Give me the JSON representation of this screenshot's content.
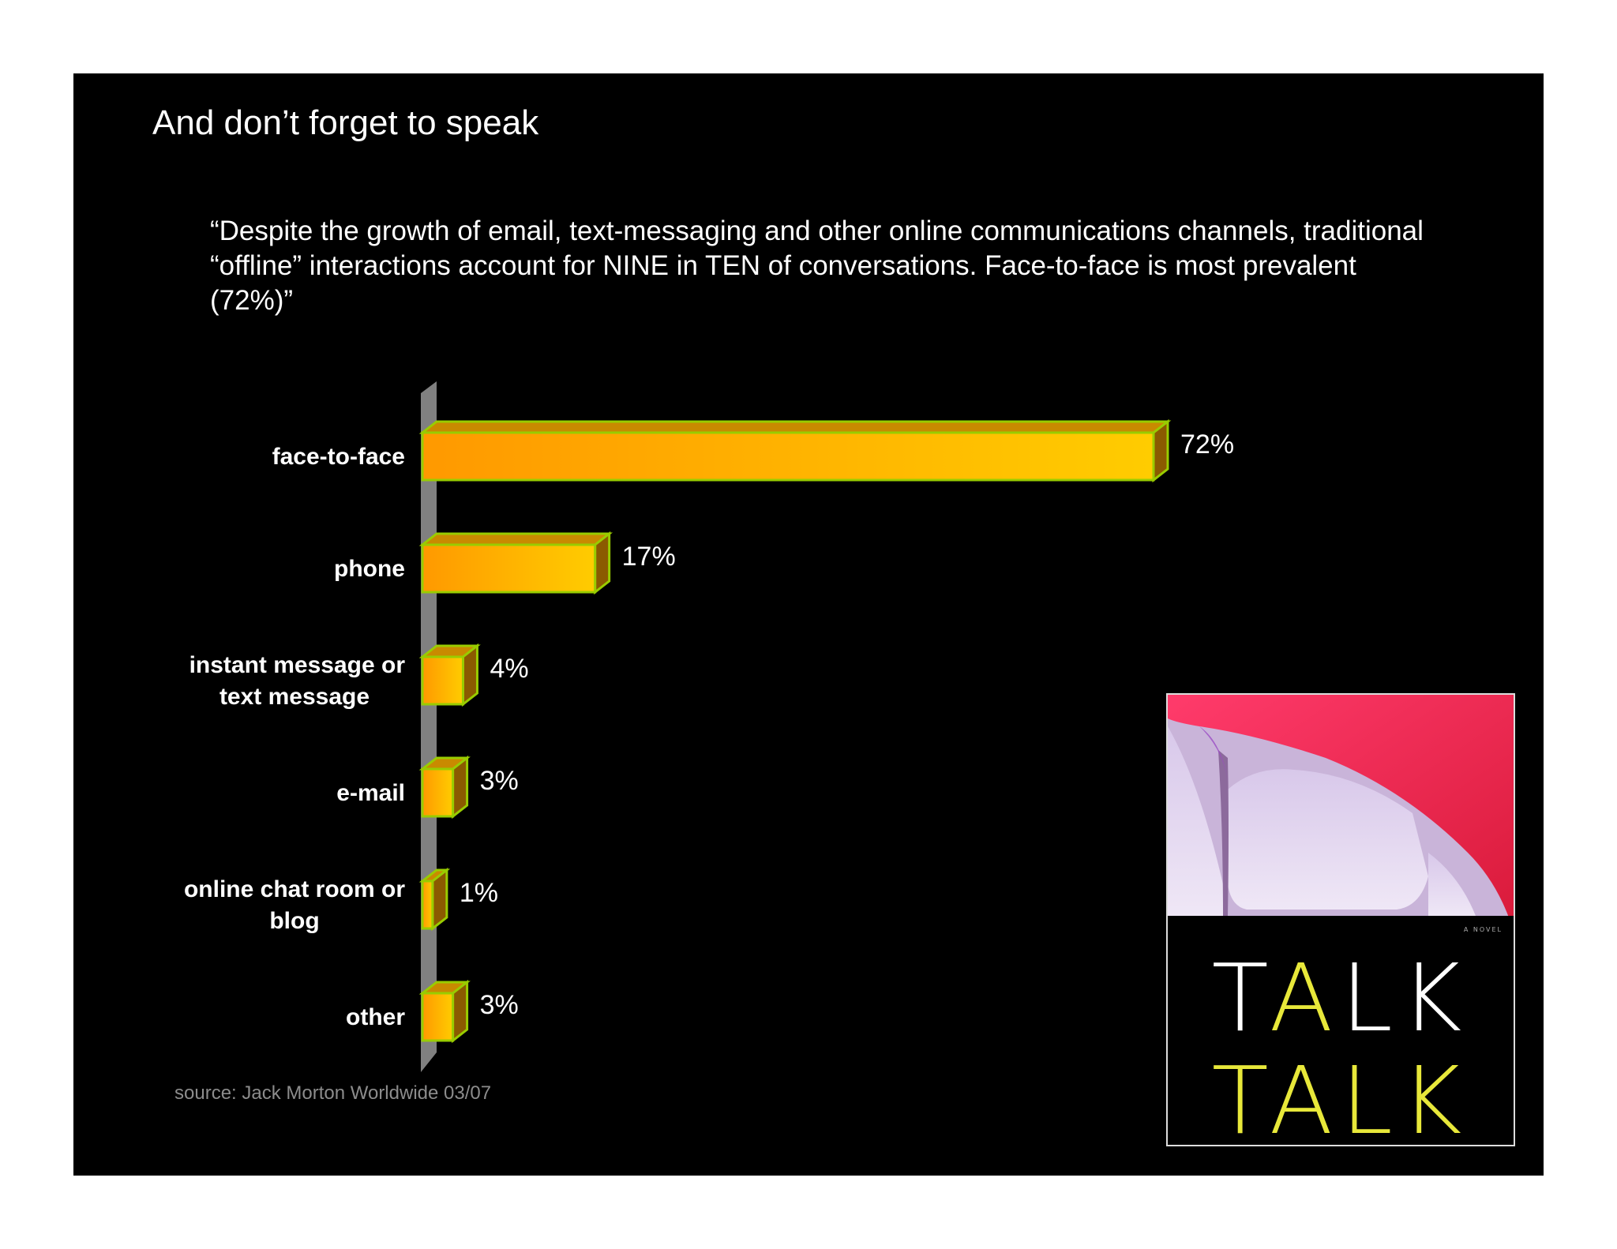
{
  "slide": {
    "title": "And don’t forget to speak",
    "quote": "“Despite the growth of email, text-messaging and other online communications channels, traditional “offline” interactions account for NINE in TEN of conversations. Face-to-face is most prevalent (72%)”",
    "source": "source: Jack Morton Worldwide 03/07"
  },
  "colors": {
    "background": "#000000",
    "bar_front_left": "#ff9900",
    "bar_front_right": "#ffcc00",
    "bar_outline": "#99cc00",
    "bar_side": "#8b5a00",
    "axis_wall": "#808080"
  },
  "chart_data": {
    "type": "bar",
    "orientation": "horizontal",
    "style": "3d",
    "categories": [
      [
        "face-to-face"
      ],
      [
        "phone"
      ],
      [
        "instant message or",
        "text message"
      ],
      [
        "e-mail"
      ],
      [
        "online chat room or",
        "blog"
      ],
      [
        "other"
      ]
    ],
    "values": [
      72,
      17,
      4,
      3,
      1,
      3
    ],
    "value_labels": [
      "72%",
      "17%",
      "4%",
      "3%",
      "1%",
      "3%"
    ],
    "xlim": [
      0,
      72
    ],
    "grid": false,
    "legend": "none"
  },
  "book_cover": {
    "small_caption": "A NOVEL",
    "line1": [
      "T",
      "A",
      "L",
      "K"
    ],
    "line2": [
      "T",
      "A",
      "L",
      "K"
    ],
    "color_white": "#ffffff",
    "color_yellow": "#e8e83a"
  }
}
